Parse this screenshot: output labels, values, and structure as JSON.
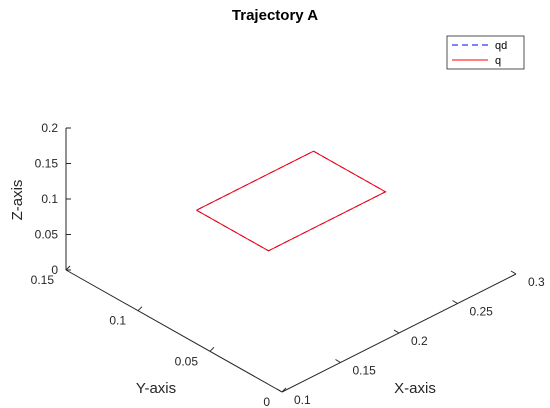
{
  "chart_data": {
    "type": "line",
    "title": "Trajectory A",
    "xlabel": "X-axis",
    "ylabel": "Y-axis",
    "zlabel": "Z-axis",
    "x_ticks": [
      "0.1",
      "0.15",
      "0.2",
      "0.25",
      "0.3"
    ],
    "y_ticks": [
      "0",
      "0.05",
      "0.1",
      "0.15"
    ],
    "z_ticks": [
      "0",
      "0.05",
      "0.1",
      "0.15",
      "0.2"
    ],
    "xlim": [
      0.1,
      0.3
    ],
    "ylim": [
      0,
      0.15
    ],
    "zlim": [
      0,
      0.2
    ],
    "grid": false,
    "legend_position": "top-right",
    "series": [
      {
        "name": "qd",
        "color": "#0000ff",
        "style": "dashed",
        "points": [
          [
            0.15,
            0.1,
            0.1
          ],
          [
            0.15,
            0.05,
            0.1
          ],
          [
            0.25,
            0.05,
            0.1
          ],
          [
            0.25,
            0.1,
            0.1
          ],
          [
            0.15,
            0.1,
            0.1
          ]
        ]
      },
      {
        "name": "q",
        "color": "#ff0000",
        "style": "solid",
        "points": [
          [
            0.15,
            0.1,
            0.1
          ],
          [
            0.15,
            0.05,
            0.1
          ],
          [
            0.25,
            0.05,
            0.1
          ],
          [
            0.25,
            0.1,
            0.1
          ],
          [
            0.15,
            0.1,
            0.1
          ]
        ]
      }
    ]
  }
}
